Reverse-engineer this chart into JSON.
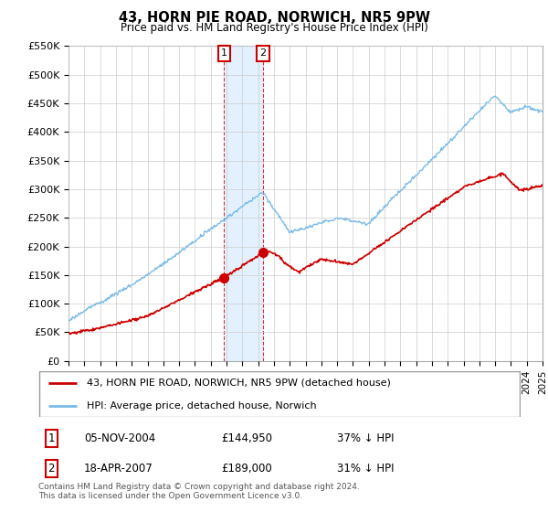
{
  "title": "43, HORN PIE ROAD, NORWICH, NR5 9PW",
  "subtitle": "Price paid vs. HM Land Registry's House Price Index (HPI)",
  "ylim": [
    0,
    550000
  ],
  "yticks": [
    0,
    50000,
    100000,
    150000,
    200000,
    250000,
    300000,
    350000,
    400000,
    450000,
    500000,
    550000
  ],
  "ytick_labels": [
    "£0",
    "£50K",
    "£100K",
    "£150K",
    "£200K",
    "£250K",
    "£300K",
    "£350K",
    "£400K",
    "£450K",
    "£500K",
    "£550K"
  ],
  "hpi_color": "#7abbe8",
  "price_color": "#cc0000",
  "shade_color": "#ddeeff",
  "annotation1_date": "05-NOV-2004",
  "annotation1_price": 144950,
  "annotation1_label": "37% ↓ HPI",
  "annotation2_date": "18-APR-2007",
  "annotation2_price": 189000,
  "annotation2_label": "31% ↓ HPI",
  "sale1_year": 2004.85,
  "sale2_year": 2007.3,
  "legend_label_red": "43, HORN PIE ROAD, NORWICH, NR5 9PW (detached house)",
  "legend_label_blue": "HPI: Average price, detached house, Norwich",
  "footnote": "Contains HM Land Registry data © Crown copyright and database right 2024.\nThis data is licensed under the Open Government Licence v3.0.",
  "background_color": "#ffffff",
  "grid_color": "#cccccc"
}
